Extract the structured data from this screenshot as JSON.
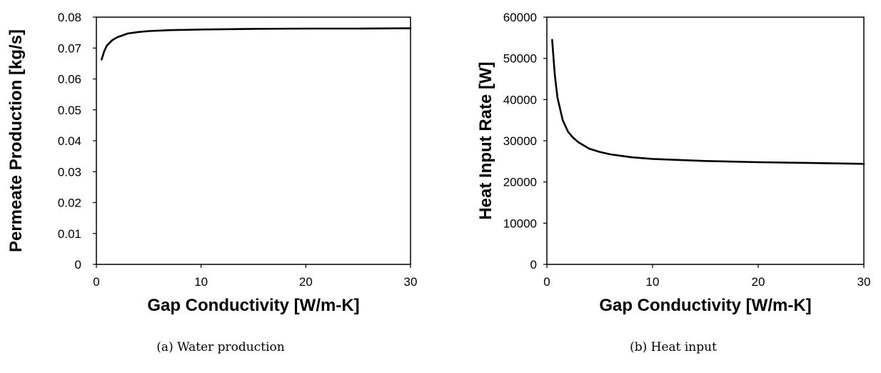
{
  "chart_data": [
    {
      "type": "line",
      "caption": "(a) Water production",
      "xlabel": "Gap Conductivity [W/m-K]",
      "ylabel": "Permeate Production [kg/s]",
      "xlim": [
        0,
        30
      ],
      "ylim": [
        0,
        0.08
      ],
      "xticks": [
        "0",
        "10",
        "20",
        "30"
      ],
      "yticks": [
        "0",
        "0.01",
        "0.02",
        "0.03",
        "0.04",
        "0.05",
        "0.06",
        "0.07",
        "0.08"
      ],
      "grid": false,
      "legend": "none",
      "x": [
        0.5,
        0.75,
        1,
        1.5,
        2,
        3,
        4,
        5,
        7,
        10,
        15,
        20,
        25,
        30
      ],
      "y": [
        0.0663,
        0.069,
        0.0708,
        0.0725,
        0.0735,
        0.0747,
        0.0752,
        0.0755,
        0.0758,
        0.076,
        0.0762,
        0.0763,
        0.0763,
        0.0764
      ]
    },
    {
      "type": "line",
      "caption": "(b) Heat input",
      "xlabel": "Gap Conductivity [W/m-K]",
      "ylabel": "Heat Input Rate [W]",
      "xlim": [
        0,
        30
      ],
      "ylim": [
        0,
        60000
      ],
      "xticks": [
        "0",
        "10",
        "20",
        "30"
      ],
      "yticks": [
        "0",
        "10000",
        "20000",
        "30000",
        "40000",
        "50000",
        "60000"
      ],
      "grid": false,
      "legend": "none",
      "x": [
        0.5,
        0.75,
        1,
        1.5,
        2,
        2.5,
        3,
        4,
        5,
        6,
        8,
        10,
        15,
        20,
        25,
        30
      ],
      "y": [
        54500,
        46000,
        40500,
        35000,
        32200,
        30700,
        29600,
        28100,
        27300,
        26700,
        26000,
        25600,
        25100,
        24800,
        24600,
        24400
      ]
    }
  ]
}
